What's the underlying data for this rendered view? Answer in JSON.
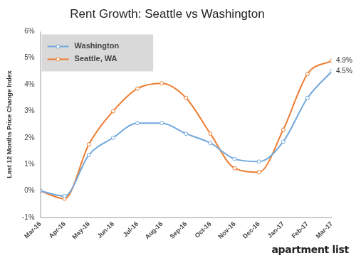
{
  "chart_data": {
    "type": "line",
    "title": "Rent Growth: Seattle vs Washington",
    "y_label": "Last 12 Months Price Change Index",
    "categories": [
      "Mar-16",
      "Apr-16",
      "May-16",
      "Jun-16",
      "Jul-16",
      "Aug-16",
      "Sep-16",
      "Oct-16",
      "Nov-16",
      "Dec-16",
      "Jan-17",
      "Feb-17",
      "Mar-17"
    ],
    "series": [
      {
        "name": "Washington",
        "color": "#6fa8dc",
        "marker": "circle",
        "values": [
          0,
          -0.2,
          1.35,
          2.0,
          2.55,
          2.55,
          2.15,
          1.8,
          1.2,
          1.1,
          1.85,
          3.5,
          4.5
        ]
      },
      {
        "name": "Seattle, WA",
        "color": "#ed7d31",
        "marker": "circle",
        "values": [
          0,
          -0.3,
          1.75,
          3.0,
          3.85,
          4.05,
          3.5,
          2.15,
          0.85,
          0.7,
          2.3,
          4.4,
          4.9
        ]
      }
    ],
    "annotations": [
      {
        "series": "Seattle, WA",
        "text": "4.9%"
      },
      {
        "series": "Washington",
        "text": "4.5%"
      }
    ],
    "ylim": [
      -1,
      6
    ],
    "yticks": [
      {
        "value": -1,
        "label": "-1%"
      },
      {
        "value": 0,
        "label": "0%"
      },
      {
        "value": 1,
        "label": "1%"
      },
      {
        "value": 2,
        "label": "2%"
      },
      {
        "value": 3,
        "label": "3%"
      },
      {
        "value": 4,
        "label": "4%"
      },
      {
        "value": 5,
        "label": "5%"
      },
      {
        "value": 6,
        "label": "6%"
      }
    ],
    "grid": false,
    "legend": "top-left",
    "logo": "apartment list"
  }
}
